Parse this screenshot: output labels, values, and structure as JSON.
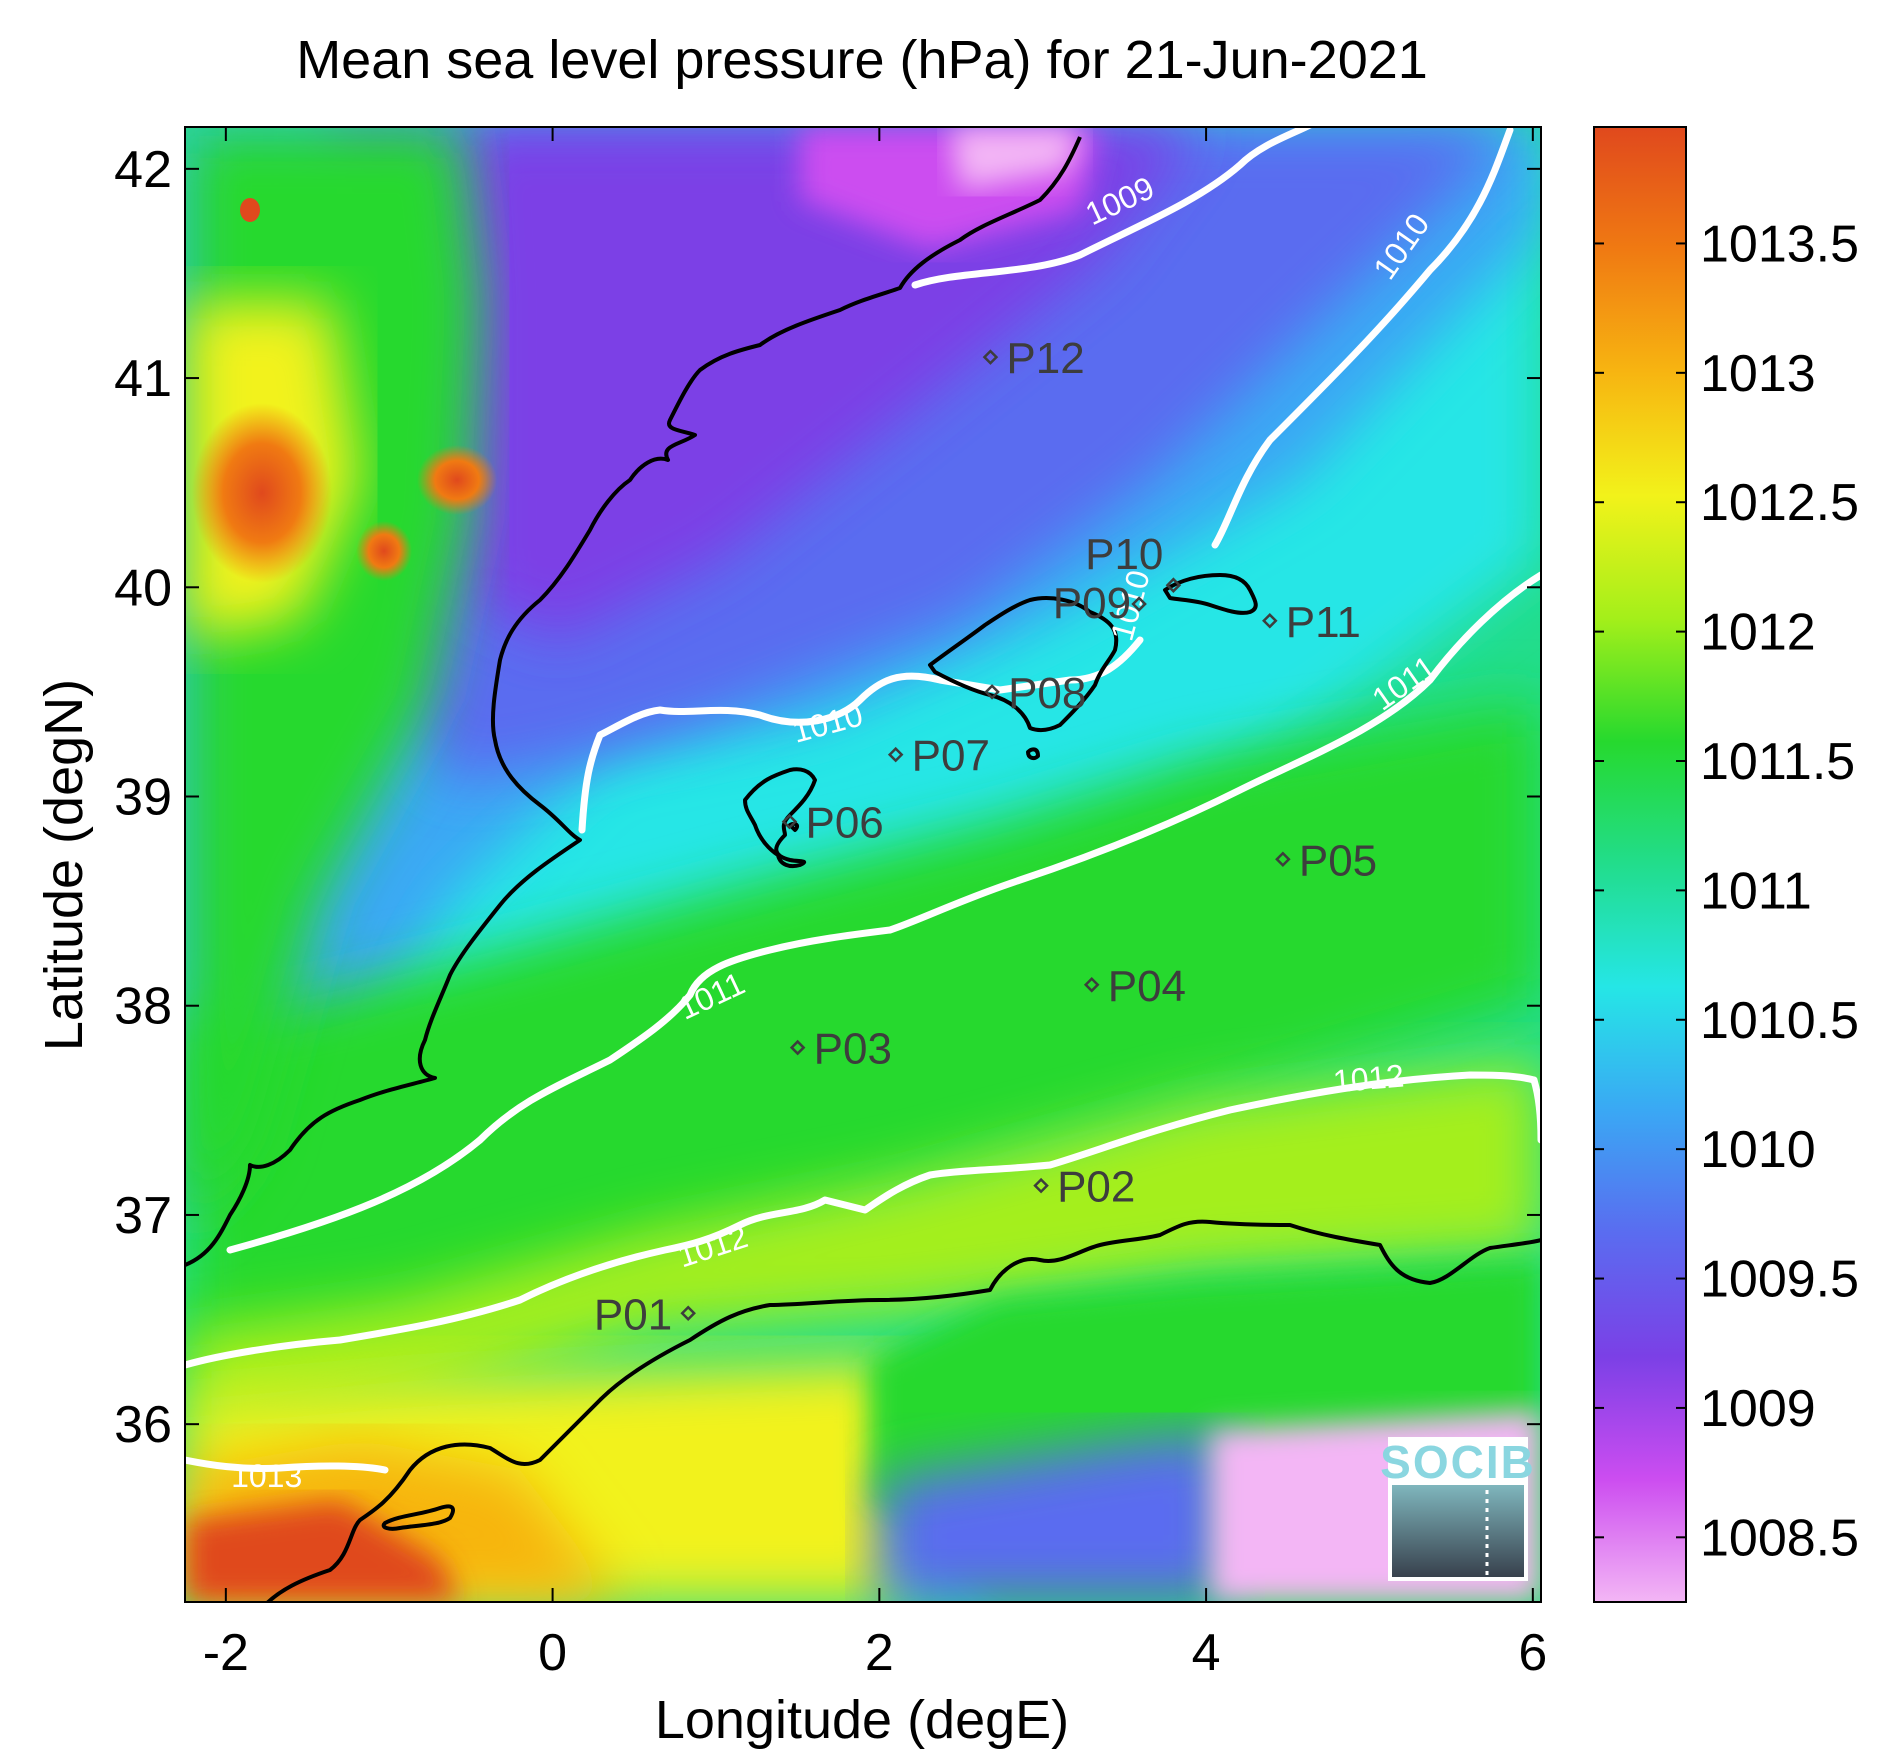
{
  "title": "Mean sea level pressure (hPa) for 21-Jun-2021",
  "xlabel": "Longitude (degE)",
  "ylabel": "Latitude (degN)",
  "x_ticks": [
    "-2",
    "0",
    "2",
    "4",
    "6"
  ],
  "y_ticks": [
    "36",
    "37",
    "38",
    "39",
    "40",
    "41",
    "42"
  ],
  "colorbar_ticks": [
    "1008.5",
    "1009",
    "1009.5",
    "1010",
    "1010.5",
    "1011",
    "1011.5",
    "1012",
    "1012.5",
    "1013",
    "1013.5"
  ],
  "logo_text": "SOCIB",
  "colors": {
    "contour": "#ffffff",
    "coast": "#000000",
    "station_marker": "#3d3d3d"
  },
  "chart_data": {
    "type": "heatmap",
    "variable": "Mean sea level pressure",
    "units": "hPa",
    "date": "21-Jun-2021",
    "xlim": [
      -2.25,
      6.05
    ],
    "ylim": [
      35.15,
      42.2
    ],
    "clim": [
      1008.25,
      1013.95
    ],
    "colormap": [
      "#f3b6f5",
      "#cc4df0",
      "#7b40e6",
      "#5a6cf0",
      "#3aa8f4",
      "#25e6e6",
      "#22dd8c",
      "#26d92e",
      "#a4ef1a",
      "#f2f21a",
      "#f7b511",
      "#f07a12",
      "#e0491d"
    ],
    "contour_levels": [
      {
        "label": "1009",
        "lon": 3.5,
        "lat": 41.8
      },
      {
        "label": "1010",
        "lon": 5.25,
        "lat": 41.6
      },
      {
        "label": "1010",
        "lon": 3.6,
        "lat": 39.9
      },
      {
        "label": "1010",
        "lon": 1.7,
        "lat": 39.3
      },
      {
        "label": "1011",
        "lon": 5.25,
        "lat": 39.5
      },
      {
        "label": "1011",
        "lon": 1.0,
        "lat": 38.0
      },
      {
        "label": "1012",
        "lon": 5.0,
        "lat": 37.6
      },
      {
        "label": "1012",
        "lon": 1.0,
        "lat": 36.8
      },
      {
        "label": "1013",
        "lon": -1.75,
        "lat": 35.7
      }
    ],
    "stations": [
      {
        "name": "P01",
        "lon": 0.83,
        "lat": 36.53
      },
      {
        "name": "P02",
        "lon": 2.99,
        "lat": 37.14
      },
      {
        "name": "P03",
        "lon": 1.5,
        "lat": 37.8
      },
      {
        "name": "P04",
        "lon": 3.3,
        "lat": 38.1
      },
      {
        "name": "P05",
        "lon": 4.47,
        "lat": 38.7
      },
      {
        "name": "P06",
        "lon": 1.45,
        "lat": 38.88
      },
      {
        "name": "P07",
        "lon": 2.1,
        "lat": 39.2
      },
      {
        "name": "P08",
        "lon": 2.69,
        "lat": 39.5
      },
      {
        "name": "P09",
        "lon": 3.59,
        "lat": 39.92
      },
      {
        "name": "P10",
        "lon": 3.8,
        "lat": 40.01
      },
      {
        "name": "P11",
        "lon": 4.39,
        "lat": 39.84
      },
      {
        "name": "P12",
        "lon": 2.68,
        "lat": 41.1
      }
    ]
  }
}
